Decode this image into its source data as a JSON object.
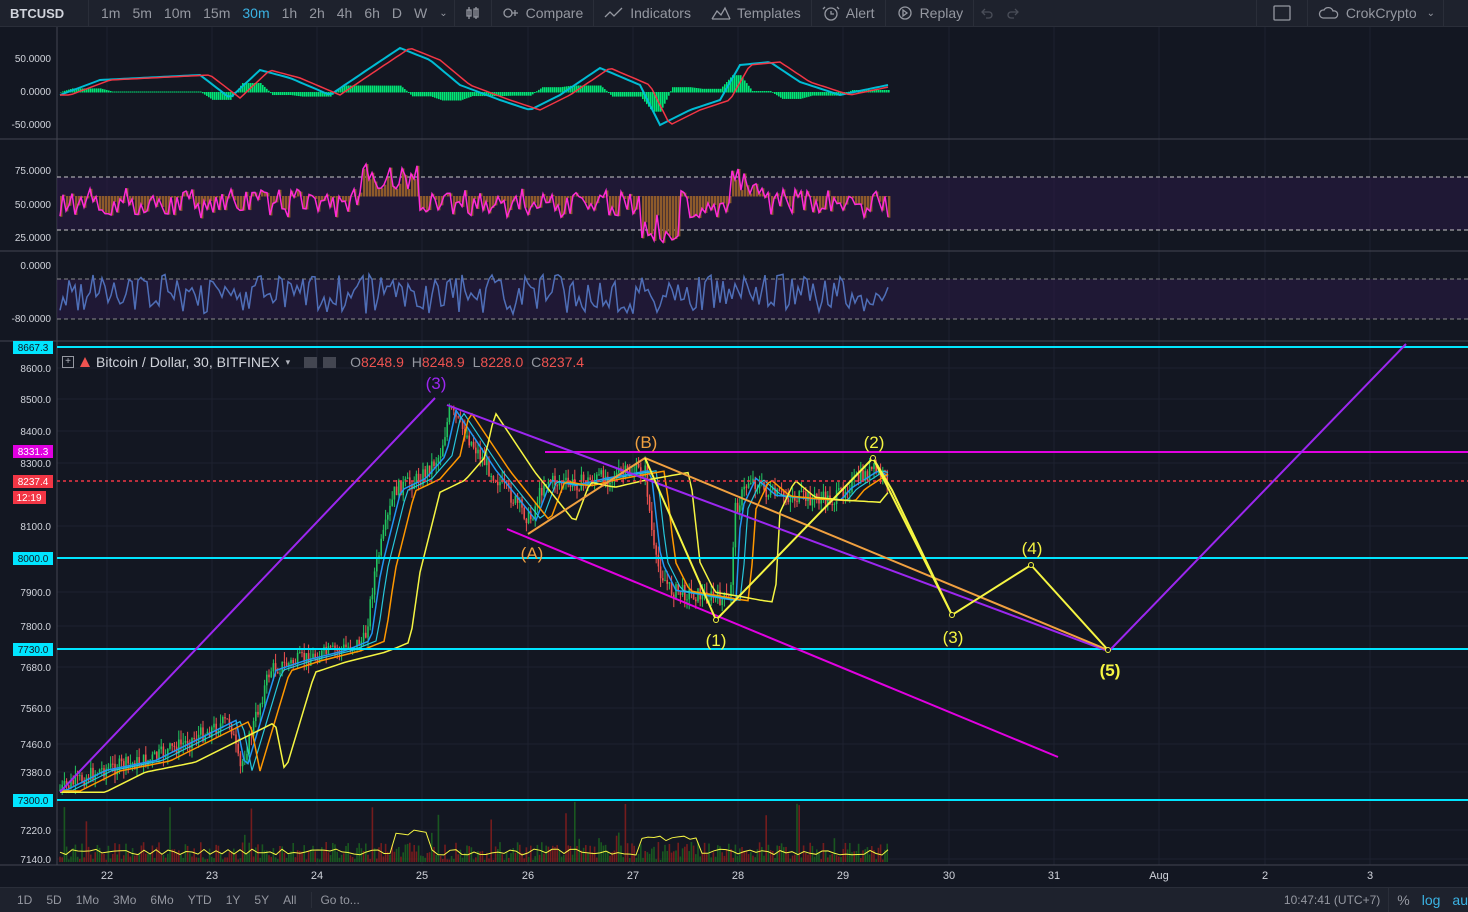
{
  "toolbar": {
    "symbol": "BTCUSD",
    "timeframes": [
      "1m",
      "5m",
      "10m",
      "15m",
      "30m",
      "1h",
      "2h",
      "4h",
      "6h",
      "D",
      "W"
    ],
    "active_timeframe": "30m",
    "compare_label": "Compare",
    "indicators_label": "Indicators",
    "templates_label": "Templates",
    "alert_label": "Alert",
    "replay_label": "Replay",
    "account_label": "CrokCrypto"
  },
  "legend": {
    "title": "Bitcoin / Dollar, 30, BITFINEX",
    "open_key": "O",
    "open": "8248.9",
    "high_key": "H",
    "high": "8248.9",
    "low_key": "L",
    "low": "8228.0",
    "close_key": "C",
    "close": "8237.4"
  },
  "panes": {
    "macd": {
      "ticks": [
        "50.0000",
        "0.0000",
        "-50.0000"
      ]
    },
    "rsi": {
      "ticks": [
        "75.0000",
        "50.0000",
        "25.0000"
      ]
    },
    "wr": {
      "ticks": [
        "0.0000",
        "-80.0000"
      ]
    }
  },
  "price_axis": {
    "ticks": [
      "8600.0",
      "8500.0",
      "8400.0",
      "8300.0",
      "8100.0",
      "7900.0",
      "7800.0",
      "7680.0",
      "7560.0",
      "7460.0",
      "7380.0",
      "7220.0",
      "7140.0"
    ],
    "badges": {
      "top": "8667.3",
      "resistance": "8331.3",
      "last": "8237.4",
      "countdown": "12:19",
      "level_8000": "8000.0",
      "level_7730": "7730.0",
      "level_7300": "7300.0"
    }
  },
  "time_axis": {
    "labels": [
      "22",
      "23",
      "24",
      "25",
      "26",
      "27",
      "28",
      "29",
      "30",
      "31",
      "Aug",
      "2",
      "3"
    ]
  },
  "wave_labels": {
    "w3_top": "(3)",
    "wB": "(B)",
    "w2": "(2)",
    "wA": "(A)",
    "w1": "(1)",
    "w4": "(4)",
    "w3": "(3)",
    "w5": "(5)"
  },
  "bottombar": {
    "ranges": [
      "1D",
      "5D",
      "1Mo",
      "3Mo",
      "6Mo",
      "YTD",
      "1Y",
      "5Y",
      "All"
    ],
    "goto_label": "Go to...",
    "clock": "10:47:41 (UTC+7)",
    "percent": "%",
    "log": "log",
    "auto": "au"
  },
  "colors": {
    "background": "#131722",
    "cyan_level": "#00e5ff",
    "magenta_level": "#e100e1",
    "purple_line": "#9c27f0",
    "yellow_projection": "#f5f542",
    "orange_line": "#f0a040",
    "last_price": "#f23645"
  }
}
